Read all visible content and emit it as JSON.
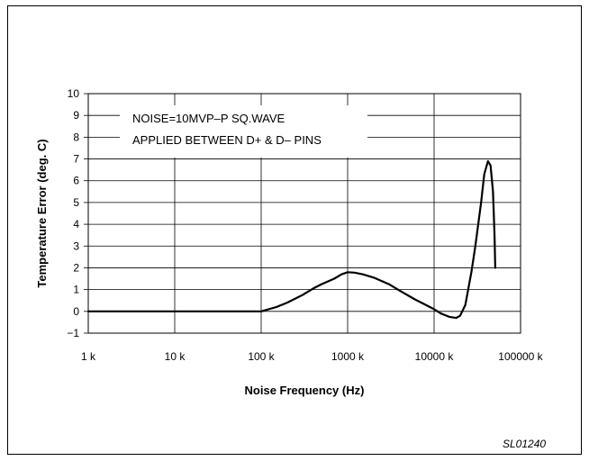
{
  "chart_data": {
    "type": "line",
    "xlabel": "Noise Frequency (Hz)",
    "ylabel": "Temperature Error (deg. C)",
    "x_scale": "log",
    "xlim": [
      1,
      100000
    ],
    "ylim": [
      -1,
      10
    ],
    "x_ticks": [
      1,
      10,
      100,
      1000,
      10000,
      100000
    ],
    "x_tick_labels": [
      "1 k",
      "10 k",
      "100 k",
      "1000 k",
      "10000 k",
      "100000 k"
    ],
    "y_ticks": [
      -1,
      0,
      1,
      2,
      3,
      4,
      5,
      6,
      7,
      8,
      9,
      10
    ],
    "y_tick_labels": [
      "−1",
      "0",
      "1",
      "2",
      "3",
      "4",
      "5",
      "6",
      "7",
      "8",
      "9",
      "10"
    ],
    "grid": true,
    "annotation": [
      "NOISE=10MVP–P SQ.WAVE",
      "APPLIED BETWEEN D+ & D– PINS"
    ],
    "series": [
      {
        "x": [
          1,
          10,
          100,
          150,
          200,
          300,
          400,
          500,
          700,
          850,
          1000,
          1200,
          1500,
          2000,
          3000,
          4000,
          6000,
          8000,
          10000,
          12000,
          15000,
          18000,
          20000,
          23000,
          27000,
          30000,
          35000,
          38000,
          42000,
          45000,
          48000,
          50000,
          51000
        ],
        "y": [
          0,
          0,
          0,
          0.2,
          0.4,
          0.75,
          1.05,
          1.25,
          1.5,
          1.7,
          1.8,
          1.78,
          1.7,
          1.55,
          1.25,
          0.95,
          0.55,
          0.3,
          0.1,
          -0.1,
          -0.25,
          -0.3,
          -0.2,
          0.3,
          1.8,
          3.0,
          5.0,
          6.3,
          6.9,
          6.7,
          5.5,
          3.5,
          2.0
        ]
      }
    ]
  },
  "figure_id": "SL01240"
}
